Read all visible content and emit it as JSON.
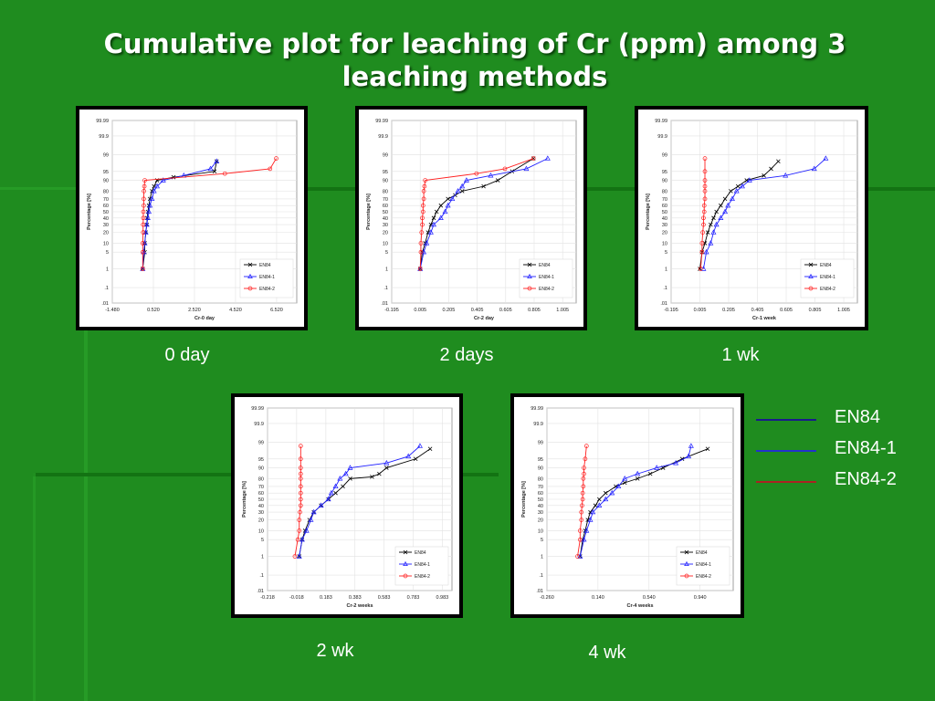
{
  "slide": {
    "title_line1": "Cumulative plot for leaching of Cr (ppm) among 3",
    "title_line2": "leaching methods"
  },
  "legend_main": [
    {
      "label": "EN84",
      "color": "#1a1a8c"
    },
    {
      "label": "EN84-1",
      "color": "#2233cc"
    },
    {
      "label": "EN84-2",
      "color": "#aa2222"
    }
  ],
  "colors": {
    "background": "#1f8c1f",
    "en84": "#000000",
    "en84_1": "#2020ff",
    "en84_2": "#ff2020"
  },
  "chart_data": [
    {
      "type": "scatter",
      "caption": "0 day",
      "xlabel": "Cr-0 day",
      "ylabel": "Percentage [%]",
      "xticks": [
        "-1.480",
        "0.520",
        "2.520",
        "4.520",
        "6.520"
      ],
      "xlim": [
        -1.48,
        7.5
      ],
      "yticks": [
        "99.99",
        "99.9",
        "99",
        "95",
        "90",
        "80",
        "70",
        "60",
        "50",
        "40",
        "30",
        "20",
        "10",
        "5",
        "1",
        ".1",
        ".01"
      ],
      "legend": [
        "EN84",
        "EN84-1",
        "EN84-2"
      ],
      "series": [
        {
          "name": "EN84",
          "points": [
            [
              0.0,
              1
            ],
            [
              0.1,
              5
            ],
            [
              0.1,
              10
            ],
            [
              0.15,
              20
            ],
            [
              0.2,
              30
            ],
            [
              0.22,
              40
            ],
            [
              0.25,
              50
            ],
            [
              0.3,
              60
            ],
            [
              0.35,
              70
            ],
            [
              0.45,
              80
            ],
            [
              0.55,
              85
            ],
            [
              0.7,
              90
            ],
            [
              1.5,
              92
            ],
            [
              3.5,
              95
            ],
            [
              3.6,
              98
            ]
          ]
        },
        {
          "name": "EN84-1",
          "points": [
            [
              0.0,
              1
            ],
            [
              0.05,
              5
            ],
            [
              0.1,
              10
            ],
            [
              0.15,
              20
            ],
            [
              0.2,
              30
            ],
            [
              0.25,
              40
            ],
            [
              0.3,
              50
            ],
            [
              0.35,
              60
            ],
            [
              0.45,
              70
            ],
            [
              0.55,
              80
            ],
            [
              0.7,
              85
            ],
            [
              1.0,
              90
            ],
            [
              2.0,
              93
            ],
            [
              3.3,
              96
            ],
            [
              3.6,
              98
            ]
          ]
        },
        {
          "name": "EN84-2",
          "points": [
            [
              0.0,
              1
            ],
            [
              0.0,
              5
            ],
            [
              0.0,
              10
            ],
            [
              0.02,
              20
            ],
            [
              0.02,
              30
            ],
            [
              0.03,
              40
            ],
            [
              0.03,
              50
            ],
            [
              0.05,
              60
            ],
            [
              0.05,
              70
            ],
            [
              0.06,
              80
            ],
            [
              0.08,
              85
            ],
            [
              0.1,
              90
            ],
            [
              4.0,
              94
            ],
            [
              6.2,
              96
            ],
            [
              6.5,
              98.5
            ]
          ]
        }
      ]
    },
    {
      "type": "scatter",
      "caption": "2 days",
      "xlabel": "Cr-2 day",
      "ylabel": "Percentage [%]",
      "xticks": [
        "-0.195",
        "0.005",
        "0.205",
        "0.405",
        "0.605",
        "0.805",
        "1.005"
      ],
      "xlim": [
        -0.195,
        1.1
      ],
      "yticks": [
        "99.99",
        "99.9",
        "99",
        "95",
        "90",
        "80",
        "70",
        "60",
        "50",
        "40",
        "30",
        "20",
        "10",
        "5",
        "1",
        ".1",
        ".01"
      ],
      "legend": [
        "EN84",
        "EN84-1",
        "EN84-2"
      ],
      "series": [
        {
          "name": "EN84",
          "points": [
            [
              0.005,
              1
            ],
            [
              0.02,
              5
            ],
            [
              0.04,
              10
            ],
            [
              0.06,
              20
            ],
            [
              0.08,
              30
            ],
            [
              0.1,
              40
            ],
            [
              0.12,
              50
            ],
            [
              0.15,
              60
            ],
            [
              0.2,
              70
            ],
            [
              0.25,
              75
            ],
            [
              0.3,
              80
            ],
            [
              0.45,
              85
            ],
            [
              0.55,
              90
            ],
            [
              0.65,
              95
            ],
            [
              0.8,
              98.5
            ]
          ]
        },
        {
          "name": "EN84-1",
          "points": [
            [
              0.005,
              1
            ],
            [
              0.03,
              5
            ],
            [
              0.05,
              10
            ],
            [
              0.08,
              20
            ],
            [
              0.1,
              30
            ],
            [
              0.15,
              40
            ],
            [
              0.18,
              50
            ],
            [
              0.2,
              60
            ],
            [
              0.23,
              70
            ],
            [
              0.27,
              80
            ],
            [
              0.3,
              85
            ],
            [
              0.33,
              90
            ],
            [
              0.5,
              93
            ],
            [
              0.75,
              96
            ],
            [
              0.9,
              98.5
            ]
          ]
        },
        {
          "name": "EN84-2",
          "points": [
            [
              0.005,
              1
            ],
            [
              0.01,
              5
            ],
            [
              0.01,
              10
            ],
            [
              0.015,
              20
            ],
            [
              0.02,
              30
            ],
            [
              0.02,
              40
            ],
            [
              0.025,
              50
            ],
            [
              0.025,
              60
            ],
            [
              0.03,
              70
            ],
            [
              0.03,
              80
            ],
            [
              0.035,
              85
            ],
            [
              0.04,
              90
            ],
            [
              0.4,
              94
            ],
            [
              0.6,
              96
            ],
            [
              0.8,
              98.5
            ]
          ]
        }
      ]
    },
    {
      "type": "scatter",
      "caption": "1 wk",
      "xlabel": "Cr-1 week",
      "ylabel": "Percentage [%]",
      "xticks": [
        "-0.195",
        "0.005",
        "0.205",
        "0.405",
        "0.605",
        "0.805",
        "1.005"
      ],
      "xlim": [
        -0.195,
        1.1
      ],
      "yticks": [
        "99.99",
        "99.9",
        "99",
        "95",
        "90",
        "80",
        "70",
        "60",
        "50",
        "40",
        "30",
        "20",
        "10",
        "5",
        "1",
        ".1",
        ".01"
      ],
      "legend": [
        "EN84",
        "EN84-1",
        "EN84-2"
      ],
      "series": [
        {
          "name": "EN84",
          "points": [
            [
              0.005,
              1
            ],
            [
              0.02,
              5
            ],
            [
              0.04,
              10
            ],
            [
              0.06,
              20
            ],
            [
              0.08,
              30
            ],
            [
              0.1,
              40
            ],
            [
              0.12,
              50
            ],
            [
              0.15,
              60
            ],
            [
              0.18,
              70
            ],
            [
              0.22,
              80
            ],
            [
              0.27,
              85
            ],
            [
              0.33,
              90
            ],
            [
              0.45,
              93
            ],
            [
              0.5,
              96
            ],
            [
              0.55,
              98
            ]
          ]
        },
        {
          "name": "EN84-1",
          "points": [
            [
              0.03,
              1
            ],
            [
              0.05,
              5
            ],
            [
              0.08,
              10
            ],
            [
              0.1,
              20
            ],
            [
              0.12,
              30
            ],
            [
              0.15,
              40
            ],
            [
              0.18,
              50
            ],
            [
              0.2,
              60
            ],
            [
              0.23,
              70
            ],
            [
              0.26,
              80
            ],
            [
              0.3,
              85
            ],
            [
              0.35,
              90
            ],
            [
              0.6,
              93
            ],
            [
              0.8,
              96
            ],
            [
              0.88,
              98.5
            ]
          ]
        },
        {
          "name": "EN84-2",
          "points": [
            [
              0.01,
              1
            ],
            [
              0.02,
              5
            ],
            [
              0.02,
              10
            ],
            [
              0.025,
              20
            ],
            [
              0.03,
              30
            ],
            [
              0.03,
              40
            ],
            [
              0.035,
              50
            ],
            [
              0.035,
              60
            ],
            [
              0.04,
              70
            ],
            [
              0.04,
              80
            ],
            [
              0.04,
              85
            ],
            [
              0.04,
              90
            ],
            [
              0.04,
              95
            ],
            [
              0.04,
              98.5
            ]
          ]
        }
      ]
    },
    {
      "type": "scatter",
      "caption": "2 wk",
      "xlabel": "Cr-2 weeks",
      "ylabel": "Percentage [%]",
      "xticks": [
        "-0.218",
        "-0.018",
        "0.183",
        "0.383",
        "0.583",
        "0.783",
        "0.983"
      ],
      "xlim": [
        -0.218,
        1.05
      ],
      "yticks": [
        "99.99",
        "99.9",
        "99",
        "95",
        "90",
        "80",
        "70",
        "60",
        "50",
        "40",
        "30",
        "20",
        "10",
        "5",
        "1",
        ".1",
        ".01"
      ],
      "legend": [
        "EN84",
        "EN84-1",
        "EN84-2"
      ],
      "series": [
        {
          "name": "EN84",
          "points": [
            [
              0.0,
              1
            ],
            [
              0.02,
              5
            ],
            [
              0.04,
              10
            ],
            [
              0.07,
              20
            ],
            [
              0.1,
              30
            ],
            [
              0.15,
              40
            ],
            [
              0.2,
              50
            ],
            [
              0.25,
              60
            ],
            [
              0.3,
              70
            ],
            [
              0.35,
              80
            ],
            [
              0.5,
              82
            ],
            [
              0.55,
              85
            ],
            [
              0.6,
              90
            ],
            [
              0.8,
              95
            ],
            [
              0.9,
              98
            ]
          ]
        },
        {
          "name": "EN84-1",
          "points": [
            [
              0.0,
              1
            ],
            [
              0.02,
              5
            ],
            [
              0.05,
              10
            ],
            [
              0.08,
              20
            ],
            [
              0.1,
              30
            ],
            [
              0.15,
              40
            ],
            [
              0.2,
              50
            ],
            [
              0.22,
              60
            ],
            [
              0.25,
              70
            ],
            [
              0.28,
              80
            ],
            [
              0.32,
              85
            ],
            [
              0.35,
              90
            ],
            [
              0.6,
              93
            ],
            [
              0.75,
              96
            ],
            [
              0.83,
              98.5
            ]
          ]
        },
        {
          "name": "EN84-2",
          "points": [
            [
              -0.03,
              1
            ],
            [
              -0.01,
              5
            ],
            [
              0.0,
              10
            ],
            [
              0.0,
              20
            ],
            [
              0.005,
              30
            ],
            [
              0.01,
              40
            ],
            [
              0.01,
              50
            ],
            [
              0.01,
              60
            ],
            [
              0.01,
              70
            ],
            [
              0.01,
              80
            ],
            [
              0.01,
              85
            ],
            [
              0.01,
              90
            ],
            [
              0.01,
              95
            ],
            [
              0.01,
              98.5
            ]
          ]
        }
      ]
    },
    {
      "type": "scatter",
      "caption": "4 wk",
      "xlabel": "Cr-4 weeks",
      "ylabel": "Percentage [%]",
      "xticks": [
        "-0.260",
        "0.140",
        "0.540",
        "0.940"
      ],
      "xlim": [
        -0.26,
        1.2
      ],
      "yticks": [
        "99.99",
        "99.9",
        "99",
        "95",
        "90",
        "80",
        "70",
        "60",
        "50",
        "40",
        "30",
        "20",
        "10",
        "5",
        "1",
        ".1",
        ".01"
      ],
      "legend": [
        "EN84",
        "EN84-1",
        "EN84-2"
      ],
      "series": [
        {
          "name": "EN84",
          "points": [
            [
              0.0,
              1
            ],
            [
              0.02,
              5
            ],
            [
              0.04,
              10
            ],
            [
              0.06,
              20
            ],
            [
              0.08,
              30
            ],
            [
              0.12,
              40
            ],
            [
              0.15,
              50
            ],
            [
              0.2,
              60
            ],
            [
              0.28,
              70
            ],
            [
              0.35,
              75
            ],
            [
              0.45,
              80
            ],
            [
              0.55,
              85
            ],
            [
              0.65,
              90
            ],
            [
              0.8,
              95
            ],
            [
              1.0,
              98
            ]
          ]
        },
        {
          "name": "EN84-1",
          "points": [
            [
              0.0,
              1
            ],
            [
              0.03,
              5
            ],
            [
              0.05,
              10
            ],
            [
              0.08,
              20
            ],
            [
              0.1,
              30
            ],
            [
              0.15,
              40
            ],
            [
              0.2,
              50
            ],
            [
              0.25,
              60
            ],
            [
              0.3,
              70
            ],
            [
              0.35,
              80
            ],
            [
              0.45,
              85
            ],
            [
              0.6,
              90
            ],
            [
              0.75,
              93
            ],
            [
              0.85,
              96
            ],
            [
              0.87,
              98.5
            ]
          ]
        },
        {
          "name": "EN84-2",
          "points": [
            [
              -0.02,
              1
            ],
            [
              0.0,
              5
            ],
            [
              0.0,
              10
            ],
            [
              0.01,
              20
            ],
            [
              0.01,
              30
            ],
            [
              0.015,
              40
            ],
            [
              0.02,
              50
            ],
            [
              0.02,
              60
            ],
            [
              0.025,
              70
            ],
            [
              0.025,
              80
            ],
            [
              0.03,
              85
            ],
            [
              0.03,
              90
            ],
            [
              0.04,
              95
            ],
            [
              0.05,
              98.5
            ]
          ]
        }
      ]
    }
  ]
}
